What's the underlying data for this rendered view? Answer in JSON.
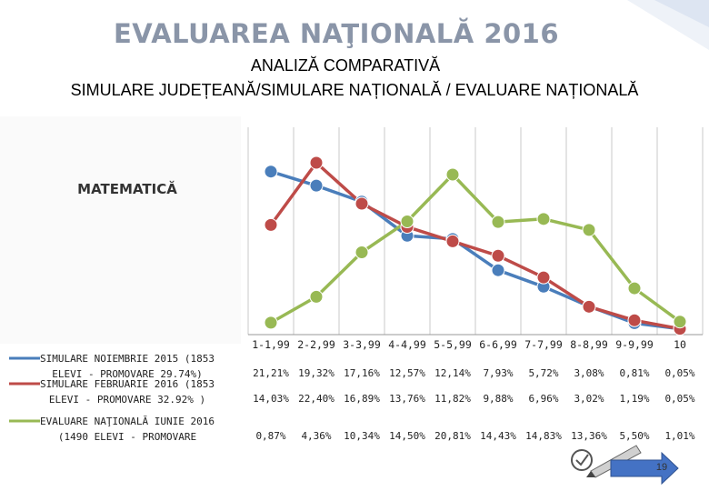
{
  "page": {
    "title": "EVALUAREA NAŢIONALĂ 2016",
    "subtitle1": "ANALIZĂ COMPARATIVĂ",
    "subtitle2": "SIMULARE  JUDEȚEANĂ/SIMULARE NAȚIONALĂ / EVALUARE NAȚIONALĂ",
    "page_number": "19"
  },
  "chart_data": {
    "type": "line",
    "title": "MATEMATICĂ",
    "categories": [
      "1-1,99",
      "2-2,99",
      "3-3,99",
      "4-4,99",
      "5-5,99",
      "6-6,99",
      "7-7,99",
      "8-8,99",
      "9-9,99",
      "10"
    ],
    "series": [
      {
        "name_lines": [
          "SIMULARE NOIEMBRIE 2015 (1853",
          "ELEVI - PROMOVARE 29.74%)"
        ],
        "color": "#4a7ebb",
        "values": [
          21.21,
          19.32,
          17.16,
          12.57,
          12.14,
          7.93,
          5.72,
          3.08,
          0.81,
          0.05
        ],
        "labels": [
          "21,21%",
          "19,32%",
          "17,16%",
          "12,57%",
          "12,14%",
          "7,93%",
          "5,72%",
          "3,08%",
          "0,81%",
          "0,05%"
        ]
      },
      {
        "name_lines": [
          "SIMULARE FEBRUARIE 2016 (1853",
          "ELEVI - PROMOVARE 32.92% )"
        ],
        "color": "#be4b48",
        "values": [
          14.03,
          22.4,
          16.89,
          13.76,
          11.82,
          9.88,
          6.96,
          3.02,
          1.19,
          0.05
        ],
        "labels": [
          "14,03%",
          "22,40%",
          "16,89%",
          "13,76%",
          "11,82%",
          "9,88%",
          "6,96%",
          "3,02%",
          "1,19%",
          "0,05%"
        ]
      },
      {
        "name_lines": [
          "EVALUARE NAŢIONALĂ IUNIE 2016",
          "(1490 ELEVI - PROMOVARE"
        ],
        "color": "#98b954",
        "values": [
          0.87,
          4.36,
          10.34,
          14.5,
          20.81,
          14.43,
          14.83,
          13.36,
          5.5,
          1.01
        ],
        "labels": [
          "0,87%",
          "4,36%",
          "10,34%",
          "14,50%",
          "20,81%",
          "14,43%",
          "14,83%",
          "13,36%",
          "5,50%",
          "1,01%"
        ]
      }
    ],
    "ylim": [
      0,
      23.5
    ],
    "grid": "vertical"
  },
  "colors": {
    "title": "#8a95a8",
    "gridline": "#c8c8c8",
    "accent_shape": "#4472c4"
  }
}
